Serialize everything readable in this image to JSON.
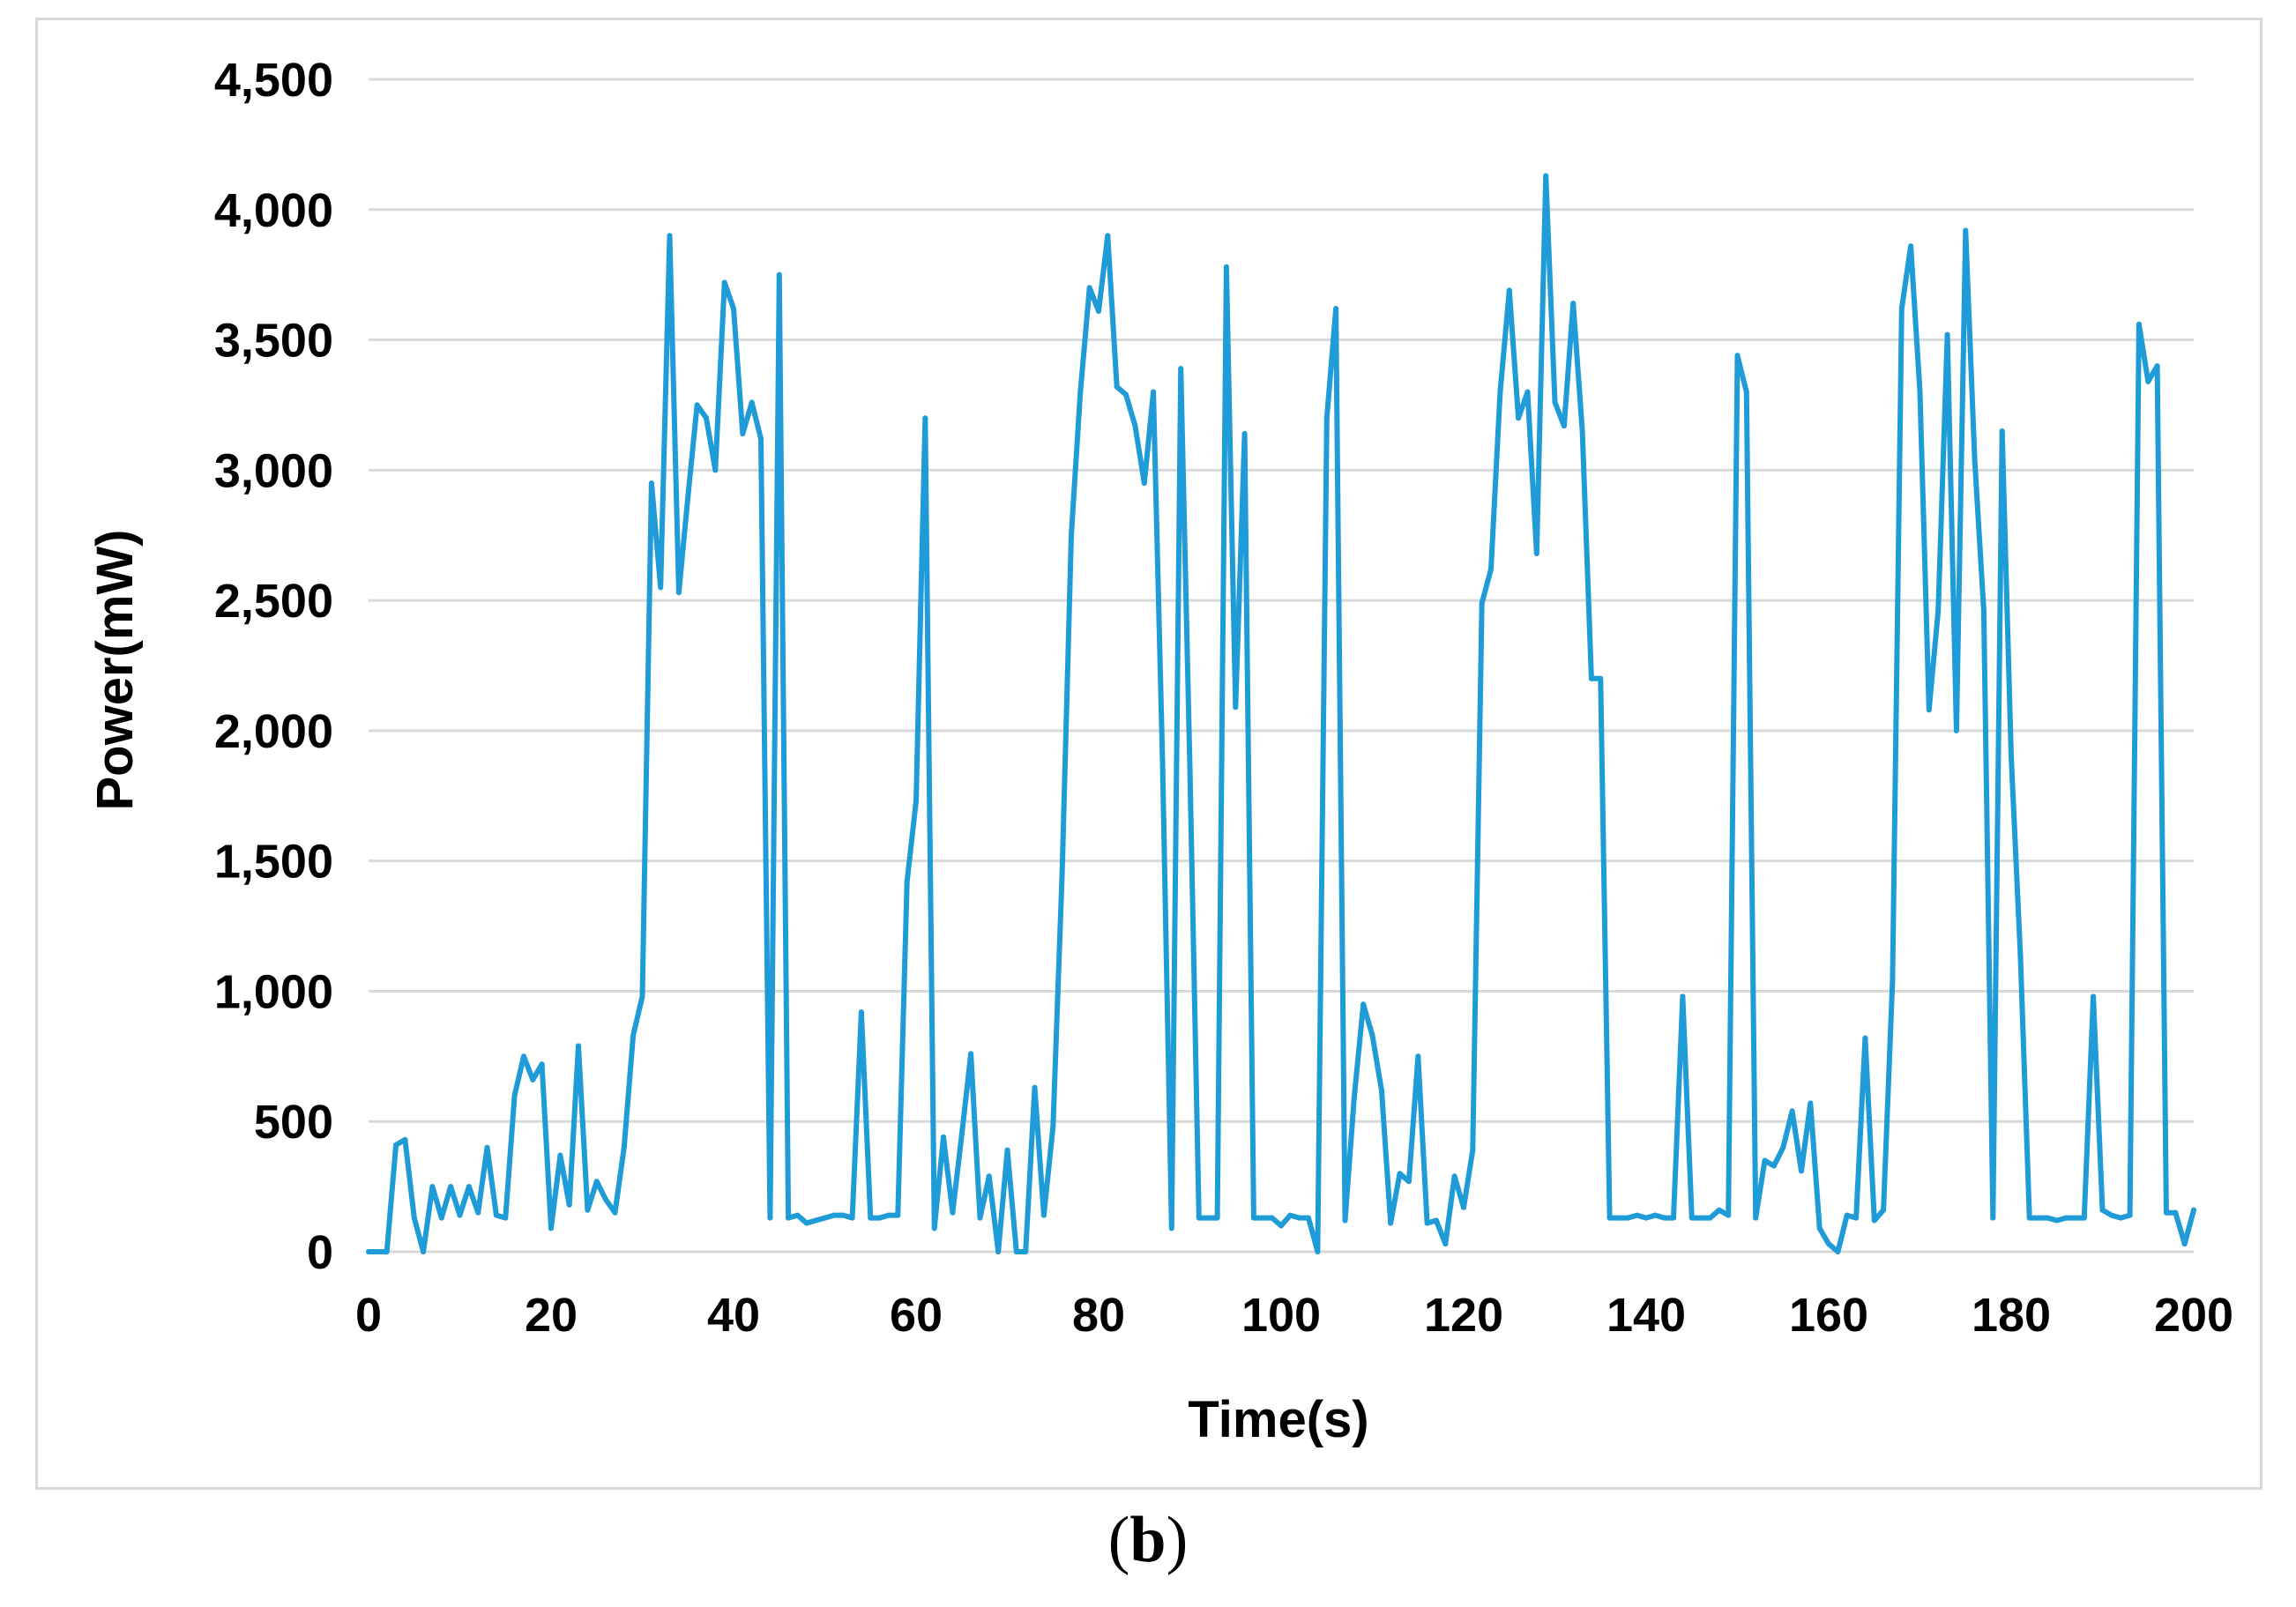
{
  "chart_data": {
    "type": "line",
    "title": "",
    "xlabel": "Time(s)",
    "ylabel": "Power(mW)",
    "xlim": [
      0,
      200
    ],
    "ylim": [
      0,
      4500
    ],
    "x_ticks": [
      "0",
      "20",
      "40",
      "60",
      "80",
      "100",
      "120",
      "140",
      "160",
      "180",
      "200"
    ],
    "y_ticks": [
      "0",
      "500",
      "1,000",
      "1,500",
      "2,000",
      "2,500",
      "3,000",
      "3,500",
      "4,000",
      "4,500"
    ],
    "grid": "horizontal",
    "legend": "none",
    "line_color": "#1f9bd7",
    "grid_color": "#d9d9d9",
    "series": [
      {
        "x": [
          0,
          1,
          2,
          3,
          4,
          5,
          6,
          7,
          8,
          9,
          10,
          11,
          12,
          13,
          14,
          15,
          16,
          17,
          18,
          19,
          20,
          21,
          22,
          23,
          24,
          25,
          26,
          27,
          28,
          29,
          30,
          31,
          32,
          33,
          34,
          35,
          36,
          37,
          38,
          39,
          40,
          41,
          42,
          43,
          44,
          45,
          46,
          47,
          48,
          49,
          50,
          51,
          52,
          53,
          54,
          55,
          56,
          57,
          58,
          59,
          60,
          61,
          62,
          63,
          64,
          65,
          66,
          67,
          68,
          69,
          70,
          71,
          72,
          73,
          74,
          75,
          76,
          77,
          78,
          79,
          80,
          81,
          82,
          83,
          84,
          85,
          86,
          87,
          88,
          89,
          90,
          91,
          92,
          93,
          94,
          95,
          96,
          97,
          98,
          99,
          100,
          101,
          102,
          103,
          104,
          105,
          106,
          107,
          108,
          109,
          110,
          111,
          112,
          113,
          114,
          115,
          116,
          117,
          118,
          119,
          120,
          121,
          122,
          123,
          124,
          125,
          126,
          127,
          128,
          129,
          130,
          131,
          132,
          133,
          134,
          135,
          136,
          137,
          138,
          139,
          140,
          141,
          142,
          143,
          144,
          145,
          146,
          147,
          148,
          149,
          150,
          151,
          152,
          153,
          154,
          155,
          156,
          157,
          158,
          159,
          160,
          161,
          162,
          163,
          164,
          165,
          166,
          167,
          168,
          169,
          170,
          171,
          172,
          173,
          174,
          175,
          176,
          177,
          178,
          179,
          180,
          181,
          182,
          183,
          184,
          185,
          186,
          187,
          188,
          189,
          190,
          191,
          192,
          193,
          194,
          195,
          196,
          197,
          198,
          199,
          200
        ],
        "values": [
          0,
          0,
          0,
          410,
          430,
          130,
          0,
          250,
          130,
          250,
          140,
          250,
          150,
          400,
          140,
          130,
          600,
          750,
          660,
          720,
          90,
          370,
          180,
          790,
          160,
          270,
          200,
          150,
          400,
          830,
          980,
          2950,
          2550,
          3900,
          2530,
          2900,
          3250,
          3200,
          3000,
          3720,
          3620,
          3140,
          3260,
          3120,
          130,
          3750,
          130,
          140,
          110,
          120,
          130,
          140,
          140,
          130,
          920,
          130,
          130,
          140,
          140,
          1420,
          1730,
          3200,
          90,
          440,
          150,
          450,
          760,
          130,
          290,
          0,
          390,
          0,
          0,
          630,
          140,
          480,
          1450,
          2750,
          3300,
          3700,
          3610,
          3900,
          3320,
          3290,
          3170,
          2950,
          3300,
          1880,
          90,
          3390,
          1860,
          130,
          130,
          130,
          3780,
          2090,
          3140,
          130,
          130,
          130,
          100,
          140,
          130,
          130,
          0,
          3200,
          3620,
          120,
          590,
          950,
          830,
          620,
          110,
          300,
          270,
          750,
          110,
          120,
          30,
          290,
          170,
          390,
          2490,
          2620,
          3300,
          3690,
          3200,
          3300,
          2680,
          4130,
          3260,
          3170,
          3640,
          3150,
          2200,
          2200,
          130,
          130,
          130,
          140,
          130,
          140,
          130,
          130,
          980,
          130,
          130,
          130,
          160,
          140,
          3440,
          3300,
          130,
          350,
          330,
          400,
          540,
          310,
          570,
          90,
          30,
          0,
          140,
          130,
          820,
          120,
          160,
          1040,
          3620,
          3860,
          3300,
          2080,
          2460,
          3520,
          2000,
          3920,
          3040,
          2460,
          130,
          3150,
          1900,
          1140,
          130,
          130,
          130,
          120,
          130,
          130,
          130,
          980,
          160,
          140,
          130,
          140,
          3560,
          3340,
          3400,
          150,
          150,
          30,
          160
        ]
      }
    ]
  },
  "panel_label": "b"
}
